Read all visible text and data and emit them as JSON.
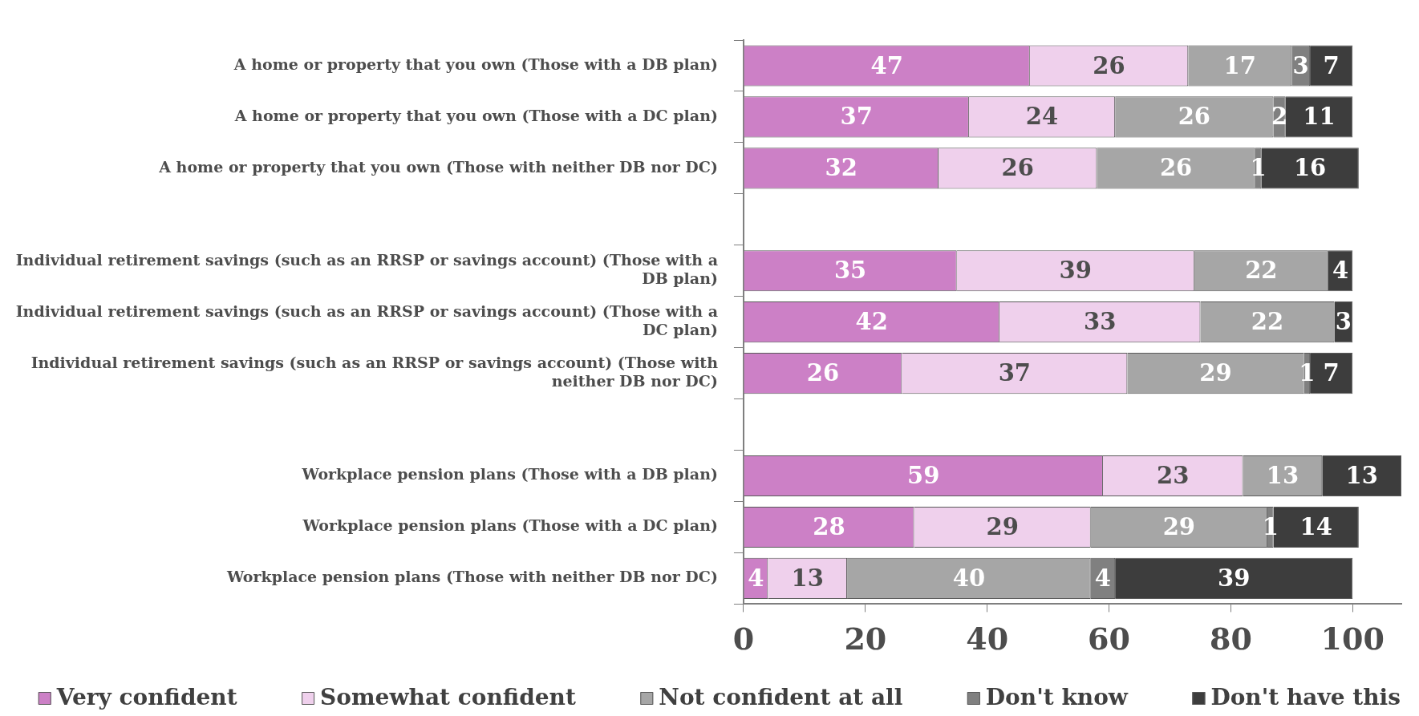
{
  "chart_data": {
    "type": "bar",
    "orientation": "horizontal",
    "stacked": true,
    "categories": [
      "A home or property that you own (Those with a DB plan)",
      "A home or property that you own (Those with a DC plan)",
      "A home or property that you own (Those with neither DB nor DC)",
      null,
      "Individual retirement savings (such as an RRSP or savings account) (Those with a DB plan)",
      "Individual retirement savings (such as an RRSP or savings account) (Those with a DC plan)",
      "Individual retirement savings (such as an RRSP or savings account) (Those with neither DB nor DC)",
      null,
      "Workplace pension plans (Those with a DB plan)",
      "Workplace pension plans (Those with a DC plan)",
      "Workplace pension plans (Those with neither DB nor DC)"
    ],
    "series": [
      {
        "name": "Very confident",
        "color": "#cc80c6",
        "values": [
          47,
          37,
          32,
          null,
          35,
          42,
          26,
          null,
          59,
          28,
          4
        ]
      },
      {
        "name": "Somewhat confident",
        "color": "#efd0ec",
        "values": [
          26,
          24,
          26,
          null,
          39,
          33,
          37,
          null,
          23,
          29,
          13
        ]
      },
      {
        "name": "Not confident at all",
        "color": "#a6a6a6",
        "values": [
          17,
          26,
          26,
          null,
          22,
          22,
          29,
          null,
          13,
          29,
          40
        ]
      },
      {
        "name": "Don't know",
        "color": "#808080",
        "values": [
          3,
          2,
          1,
          null,
          null,
          null,
          1,
          null,
          null,
          1,
          4
        ]
      },
      {
        "name": "Don't have this",
        "color": "#3d3d3d",
        "values": [
          7,
          11,
          16,
          null,
          4,
          3,
          7,
          null,
          13,
          14,
          39
        ]
      }
    ],
    "data_labels": true,
    "xlim": [
      0,
      108
    ],
    "xticks": [
      0,
      20,
      40,
      60,
      80,
      100
    ],
    "grid": false,
    "legend": "bottom"
  }
}
